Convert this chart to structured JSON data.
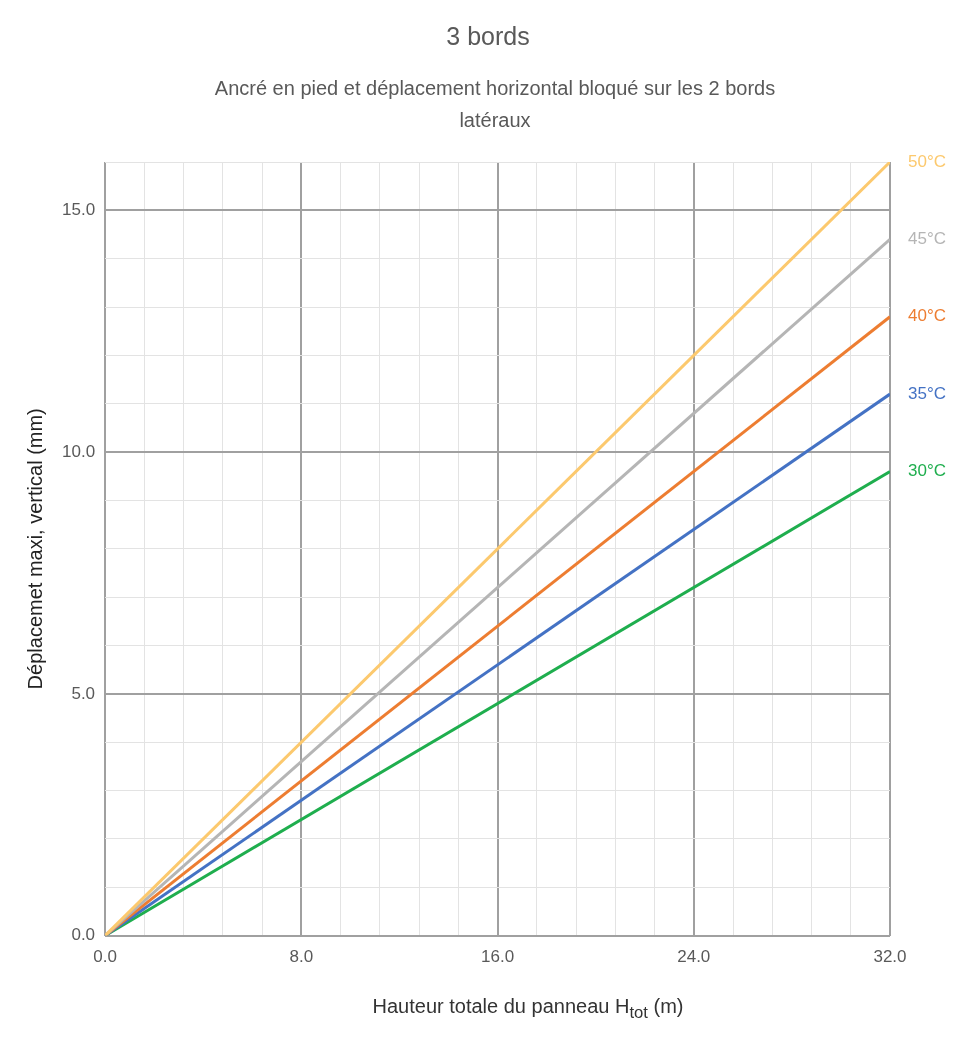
{
  "chart_data": {
    "type": "line",
    "title": "3 bords",
    "subtitle": "Ancré en pied et déplacement horizontal bloqué sur les 2 bords latéraux",
    "xlabel": "Hauteur totale du panneau  H$_{tot}$ (m)",
    "ylabel": "Déplacemet maxi, vertical (mm)",
    "x": [
      0,
      32
    ],
    "series": [
      {
        "name": "50°C",
        "color": "#fcc96e",
        "values": [
          0,
          16
        ]
      },
      {
        "name": "45°C",
        "color": "#b5b5b5",
        "values": [
          0,
          14.4
        ]
      },
      {
        "name": "40°C",
        "color": "#ed7d31",
        "values": [
          0,
          12.8
        ]
      },
      {
        "name": "35°C",
        "color": "#4472c4",
        "values": [
          0,
          11.2
        ]
      },
      {
        "name": "30°C",
        "color": "#1fae4e",
        "values": [
          0,
          9.6
        ]
      }
    ],
    "xlim": [
      0,
      32
    ],
    "ylim": [
      0,
      16
    ],
    "xticks": [
      {
        "value": 0,
        "label": "0.0"
      },
      {
        "value": 1.6,
        "label": null
      },
      {
        "value": 3.2,
        "label": null
      },
      {
        "value": 4.8,
        "label": null
      },
      {
        "value": 6.4,
        "label": null
      },
      {
        "value": 8,
        "label": "8.0"
      },
      {
        "value": 9.6,
        "label": null
      },
      {
        "value": 11.2,
        "label": null
      },
      {
        "value": 12.8,
        "label": null
      },
      {
        "value": 14.4,
        "label": null
      },
      {
        "value": 16,
        "label": "16.0"
      },
      {
        "value": 17.6,
        "label": null
      },
      {
        "value": 19.2,
        "label": null
      },
      {
        "value": 20.8,
        "label": null
      },
      {
        "value": 22.4,
        "label": null
      },
      {
        "value": 24,
        "label": "24.0"
      },
      {
        "value": 25.6,
        "label": null
      },
      {
        "value": 27.2,
        "label": null
      },
      {
        "value": 28.8,
        "label": null
      },
      {
        "value": 30.4,
        "label": null
      },
      {
        "value": 32,
        "label": "32.0"
      }
    ],
    "yticks": [
      {
        "value": 0,
        "label": "0.0"
      },
      {
        "value": 1,
        "label": null
      },
      {
        "value": 2,
        "label": null
      },
      {
        "value": 3,
        "label": null
      },
      {
        "value": 4,
        "label": null
      },
      {
        "value": 5,
        "label": "5.0"
      },
      {
        "value": 6,
        "label": null
      },
      {
        "value": 7,
        "label": null
      },
      {
        "value": 8,
        "label": null
      },
      {
        "value": 9,
        "label": null
      },
      {
        "value": 10,
        "label": "10.0"
      },
      {
        "value": 11,
        "label": null
      },
      {
        "value": 12,
        "label": null
      },
      {
        "value": 13,
        "label": null
      },
      {
        "value": 14,
        "label": null
      },
      {
        "value": 15,
        "label": "15.0"
      },
      {
        "value": 16,
        "label": null
      }
    ],
    "grid": true,
    "legend": false,
    "marker": "none",
    "line_style": "solid"
  }
}
